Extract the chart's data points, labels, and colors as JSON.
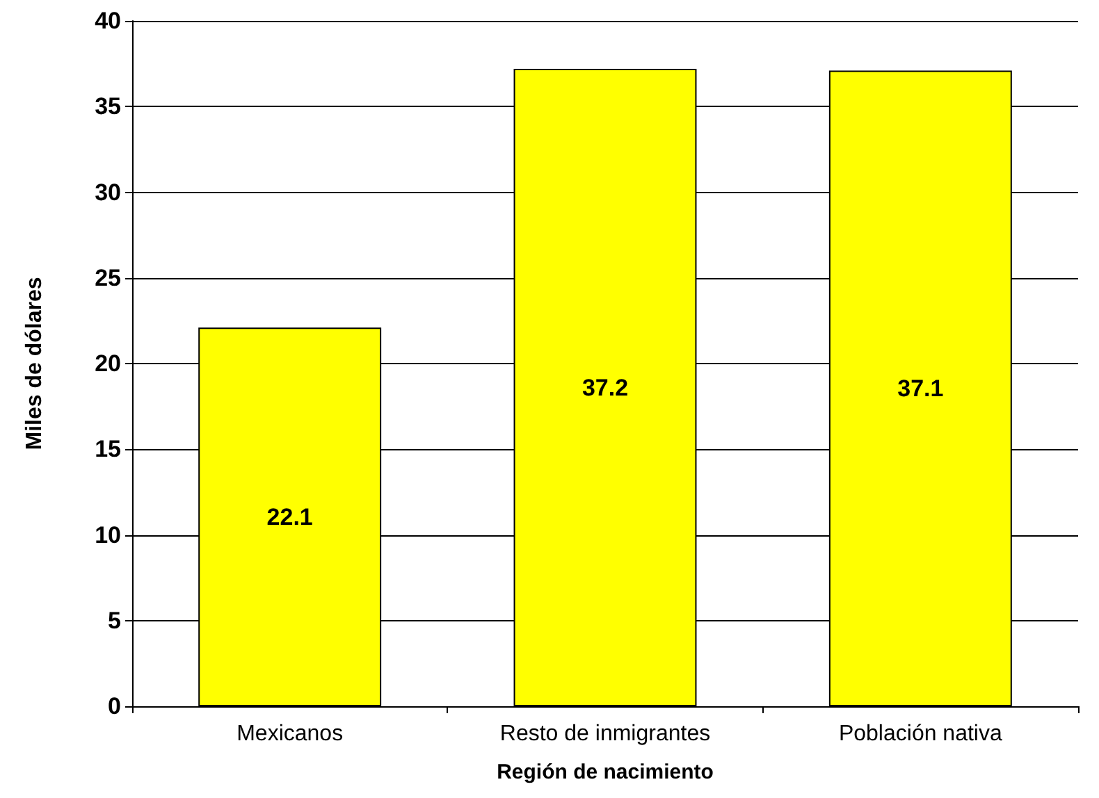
{
  "chart_data": {
    "type": "bar",
    "xlabel": "Región de nacimiento",
    "ylabel": "Miles de dólares",
    "categories": [
      "Mexicanos",
      "Resto de inmigrantes",
      "Población nativa"
    ],
    "values": [
      22.1,
      37.2,
      37.1
    ],
    "color": "#ffff00",
    "ylim": [
      0,
      40
    ],
    "yticks": [
      0,
      5,
      10,
      15,
      20,
      25,
      30,
      35,
      40
    ],
    "grid": "y",
    "data_labels": true
  }
}
